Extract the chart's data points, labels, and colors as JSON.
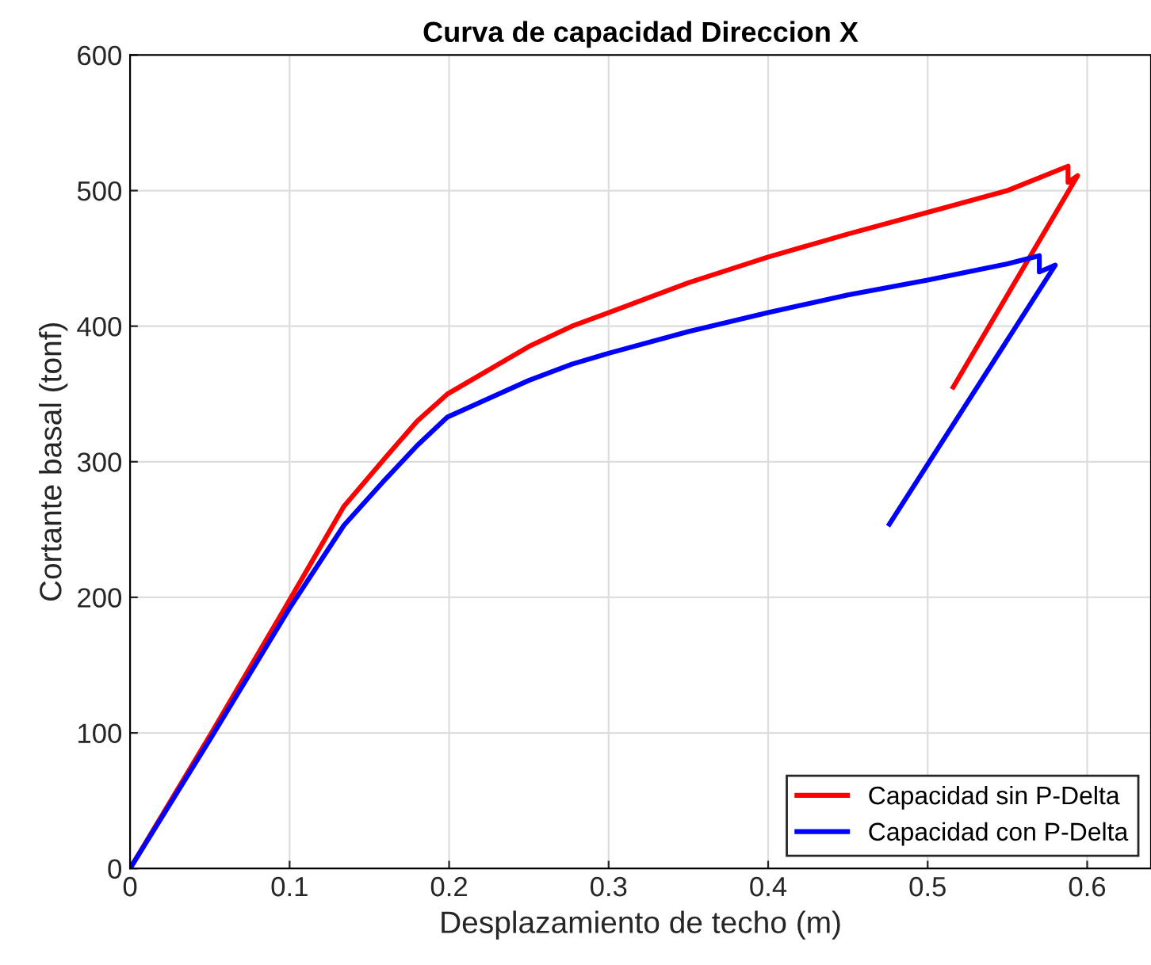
{
  "chart_data": {
    "type": "line",
    "title": "Curva de capacidad Direccion X",
    "xlabel": "Desplazamiento de techo (m)",
    "ylabel": "Cortante basal (tonf)",
    "xlim": [
      0,
      0.64
    ],
    "ylim": [
      0,
      600
    ],
    "xticks": [
      0,
      0.1,
      0.2,
      0.3,
      0.4,
      0.5,
      0.6
    ],
    "yticks": [
      0,
      100,
      200,
      300,
      400,
      500,
      600
    ],
    "grid": true,
    "legend": "bottom right",
    "line_style": "solid",
    "marker": "none",
    "series": [
      {
        "name": "Capacidad sin P-Delta",
        "color": "#ff0000",
        "x": [
          0,
          0.05,
          0.1,
          0.134,
          0.16,
          0.18,
          0.199,
          0.25,
          0.277,
          0.3,
          0.35,
          0.4,
          0.45,
          0.5,
          0.55,
          0.588,
          0.588,
          0.594,
          0.516
        ],
        "values": [
          0,
          98,
          198,
          267,
          303,
          330,
          350,
          385,
          400,
          410,
          432,
          451,
          468,
          484,
          500,
          518,
          506,
          511,
          355
        ]
      },
      {
        "name": "Capacidad con P-Delta",
        "color": "#0000ff",
        "x": [
          0,
          0.05,
          0.1,
          0.134,
          0.16,
          0.18,
          0.199,
          0.25,
          0.277,
          0.3,
          0.35,
          0.4,
          0.45,
          0.5,
          0.55,
          0.57,
          0.57,
          0.58,
          0.476
        ],
        "values": [
          0,
          95,
          192,
          253,
          287,
          312,
          333,
          360,
          372,
          380,
          396,
          410,
          423,
          434,
          446,
          452,
          440,
          445,
          254
        ]
      }
    ]
  }
}
